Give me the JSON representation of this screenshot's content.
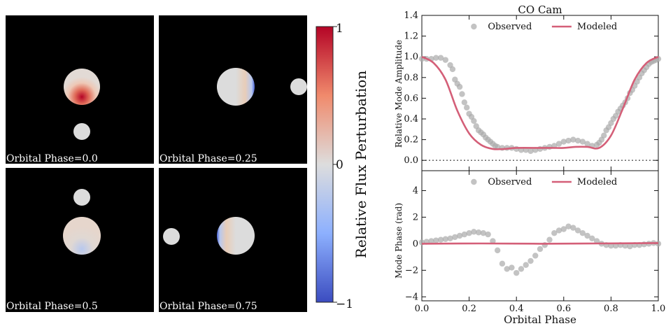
{
  "left_panels": [
    {
      "label": "Orbital Phase=0.0"
    },
    {
      "label": "Orbital Phase=0.25"
    },
    {
      "label": "Orbital Phase=0.5"
    },
    {
      "label": "Orbital Phase=0.75"
    }
  ],
  "colorbar": {
    "label": "Relative Flux Perturbation",
    "ticks": [
      "1",
      "0",
      "−1"
    ],
    "colors": {
      "high": "#b40426",
      "mid": "#dddddd",
      "low": "#3b4cc0"
    }
  },
  "chart_data": [
    {
      "type": "scatter",
      "title": "CO Cam",
      "xlabel": "",
      "ylabel": "Relative Mode Amplitude",
      "xlim": [
        0,
        1
      ],
      "ylim": [
        -0.1,
        1.4
      ],
      "yticks": [
        "0.0",
        "0.2",
        "0.4",
        "0.6",
        "0.8",
        "1.0",
        "1.2",
        "1.4"
      ],
      "legend": [
        "Observed",
        "Modeled"
      ],
      "legend_position": "top-center",
      "reference_line": 0,
      "series": [
        {
          "name": "Observed",
          "color": "#aaaaaa",
          "x": [
            0.0,
            0.02,
            0.04,
            0.06,
            0.08,
            0.1,
            0.12,
            0.13,
            0.14,
            0.15,
            0.16,
            0.17,
            0.18,
            0.19,
            0.2,
            0.21,
            0.22,
            0.23,
            0.24,
            0.25,
            0.26,
            0.27,
            0.28,
            0.29,
            0.3,
            0.31,
            0.32,
            0.34,
            0.36,
            0.38,
            0.4,
            0.42,
            0.44,
            0.46,
            0.48,
            0.5,
            0.52,
            0.54,
            0.56,
            0.58,
            0.6,
            0.62,
            0.64,
            0.66,
            0.68,
            0.7,
            0.72,
            0.74,
            0.75,
            0.76,
            0.77,
            0.78,
            0.79,
            0.8,
            0.81,
            0.82,
            0.83,
            0.84,
            0.85,
            0.86,
            0.87,
            0.88,
            0.89,
            0.9,
            0.91,
            0.92,
            0.93,
            0.94,
            0.95,
            0.96,
            0.97,
            0.98,
            0.99,
            1.0
          ],
          "y": [
            0.98,
            0.98,
            0.98,
            0.99,
            0.99,
            0.97,
            0.92,
            0.88,
            0.78,
            0.74,
            0.71,
            0.64,
            0.56,
            0.51,
            0.45,
            0.42,
            0.38,
            0.33,
            0.29,
            0.27,
            0.25,
            0.22,
            0.2,
            0.18,
            0.16,
            0.14,
            0.13,
            0.12,
            0.12,
            0.12,
            0.11,
            0.1,
            0.1,
            0.09,
            0.1,
            0.11,
            0.12,
            0.13,
            0.14,
            0.16,
            0.18,
            0.19,
            0.2,
            0.19,
            0.18,
            0.16,
            0.14,
            0.15,
            0.17,
            0.2,
            0.24,
            0.29,
            0.32,
            0.36,
            0.4,
            0.43,
            0.47,
            0.5,
            0.53,
            0.56,
            0.6,
            0.65,
            0.68,
            0.72,
            0.76,
            0.8,
            0.84,
            0.87,
            0.9,
            0.93,
            0.95,
            0.96,
            0.97,
            0.98
          ]
        },
        {
          "name": "Modeled",
          "color": "#d45f78",
          "x": [
            0.0,
            0.05,
            0.1,
            0.15,
            0.2,
            0.25,
            0.3,
            0.35,
            0.4,
            0.5,
            0.55,
            0.6,
            0.65,
            0.7,
            0.75,
            0.8,
            0.85,
            0.9,
            0.95,
            1.0
          ],
          "y": [
            1.0,
            0.94,
            0.78,
            0.48,
            0.26,
            0.15,
            0.11,
            0.11,
            0.12,
            0.12,
            0.12,
            0.12,
            0.13,
            0.13,
            0.12,
            0.24,
            0.5,
            0.78,
            0.94,
            1.0
          ]
        }
      ]
    },
    {
      "type": "scatter",
      "title": "",
      "xlabel": "Orbital Phase",
      "ylabel": "Mode Phase (rad)",
      "xlim": [
        0,
        1
      ],
      "ylim": [
        -4.3,
        5.5
      ],
      "xticks": [
        "0.0",
        "0.2",
        "0.4",
        "0.6",
        "0.8",
        "1.0"
      ],
      "yticks": [
        "−4",
        "−2",
        "0",
        "2",
        "4"
      ],
      "legend": [
        "Observed",
        "Modeled"
      ],
      "legend_position": "top-center",
      "series": [
        {
          "name": "Observed",
          "color": "#aaaaaa",
          "x": [
            0.0,
            0.02,
            0.04,
            0.06,
            0.08,
            0.1,
            0.12,
            0.14,
            0.16,
            0.18,
            0.2,
            0.22,
            0.24,
            0.26,
            0.28,
            0.3,
            0.32,
            0.34,
            0.36,
            0.38,
            0.4,
            0.42,
            0.44,
            0.46,
            0.48,
            0.5,
            0.52,
            0.54,
            0.56,
            0.58,
            0.6,
            0.62,
            0.64,
            0.66,
            0.68,
            0.7,
            0.72,
            0.74,
            0.76,
            0.78,
            0.8,
            0.82,
            0.84,
            0.86,
            0.88,
            0.9,
            0.92,
            0.94,
            0.96,
            0.98,
            1.0
          ],
          "y": [
            0.1,
            0.15,
            0.2,
            0.25,
            0.3,
            0.35,
            0.4,
            0.5,
            0.6,
            0.7,
            0.8,
            0.9,
            0.85,
            0.8,
            0.7,
            0.2,
            -0.5,
            -1.5,
            -1.9,
            -1.8,
            -2.2,
            -1.9,
            -1.6,
            -1.3,
            -0.9,
            -0.4,
            -0.1,
            0.3,
            0.8,
            1.0,
            1.1,
            1.3,
            1.2,
            1.0,
            0.8,
            0.6,
            0.4,
            0.2,
            0.0,
            -0.1,
            -0.15,
            -0.15,
            -0.1,
            -0.15,
            -0.2,
            -0.1,
            -0.1,
            -0.05,
            0.0,
            0.05,
            0.0
          ]
        },
        {
          "name": "Modeled",
          "color": "#d45f78",
          "x": [
            0.0,
            0.25,
            0.5,
            0.75,
            1.0
          ],
          "y": [
            0.0,
            0.02,
            0.0,
            0.02,
            0.05
          ]
        }
      ]
    }
  ]
}
